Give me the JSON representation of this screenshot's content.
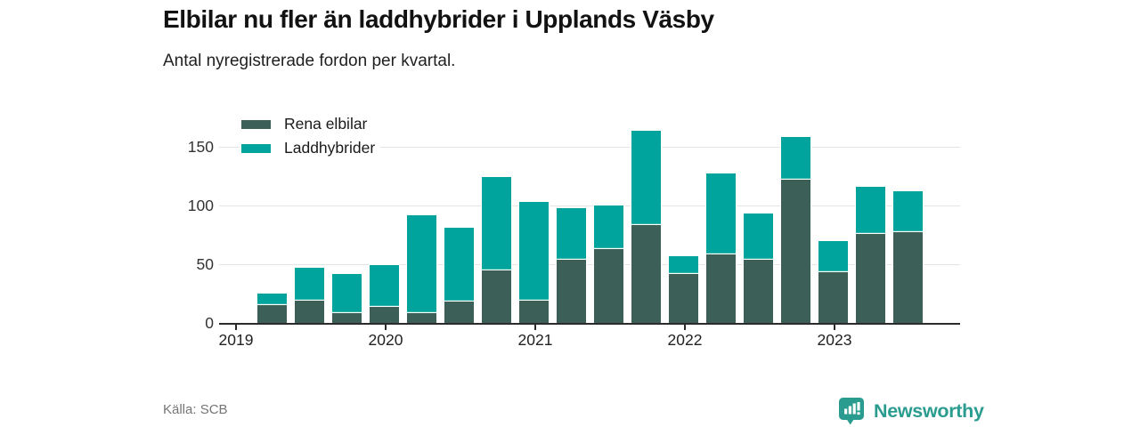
{
  "header": {
    "title": "Elbilar nu fler än laddhybrider i Upplands Väsby",
    "subtitle": "Antal nyregistrerade fordon per kvartal."
  },
  "footer": {
    "source": "Källa: SCB",
    "brand_name": "Newsworthy",
    "brand_color": "#2a9c8f"
  },
  "colors": {
    "rena_elbilar": "#3c5f57",
    "laddhybrider": "#00a49c",
    "grid": "#e4e4e4",
    "axis": "#2b2b2b"
  },
  "chart_data": {
    "type": "bar",
    "stacked": true,
    "title": "Elbilar nu fler än laddhybrider i Upplands Väsby",
    "subtitle": "Antal nyregistrerade fordon per kvartal.",
    "categories": [
      "2019 Q2",
      "2019 Q3",
      "2019 Q4",
      "2020 Q1",
      "2020 Q2",
      "2020 Q3",
      "2020 Q4",
      "2021 Q1",
      "2021 Q2",
      "2021 Q3",
      "2021 Q4",
      "2022 Q1",
      "2022 Q2",
      "2022 Q3",
      "2022 Q4",
      "2023 Q1",
      "2023 Q2",
      "2023 Q3"
    ],
    "series": [
      {
        "name": "Rena elbilar",
        "color": "#3c5f57",
        "values": [
          15,
          19,
          8,
          14,
          8,
          18,
          45,
          19,
          54,
          63,
          83,
          42,
          58,
          54,
          122,
          43,
          76,
          77
        ]
      },
      {
        "name": "Laddhybrider",
        "color": "#00a49c",
        "values": [
          10,
          28,
          34,
          35,
          84,
          63,
          79,
          84,
          44,
          37,
          81,
          15,
          69,
          39,
          36,
          27,
          40,
          35
        ]
      }
    ],
    "x_tick_labels": [
      "2019",
      "2020",
      "2021",
      "2022",
      "2023"
    ],
    "y_ticks": [
      0,
      50,
      100,
      150
    ],
    "ylim": [
      0,
      169
    ],
    "grid": "horizontal",
    "legend_position": "top-left",
    "xlabel": "",
    "ylabel": ""
  }
}
